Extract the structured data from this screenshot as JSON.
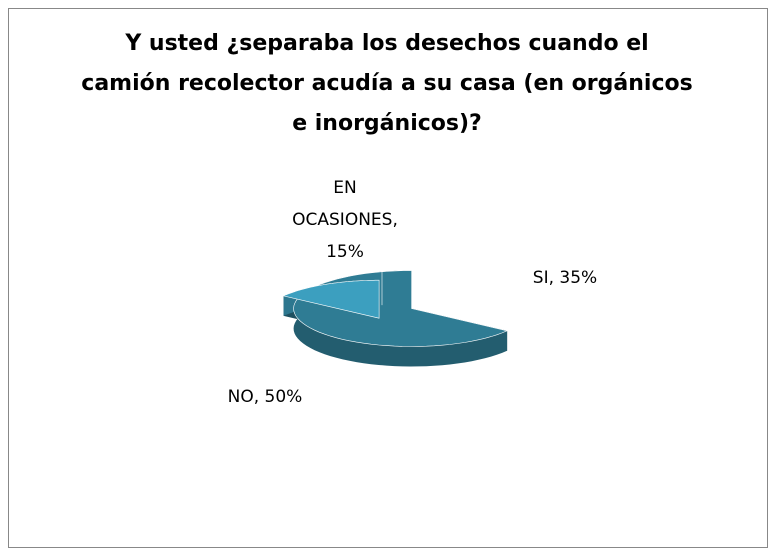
{
  "chart_data": {
    "type": "pie",
    "title": "Y usted ¿separaba los desechos cuando el camión recolector acudía a su casa (en orgánicos e inorgánicos)?",
    "values": [
      35,
      50,
      15
    ],
    "value_labels": [
      "SI, 35%",
      "NO, 50%",
      "EN OCASIONES, 15%"
    ],
    "colors": [
      "#2f7c94",
      "#3c9fbf",
      "#a7c7d1"
    ]
  }
}
